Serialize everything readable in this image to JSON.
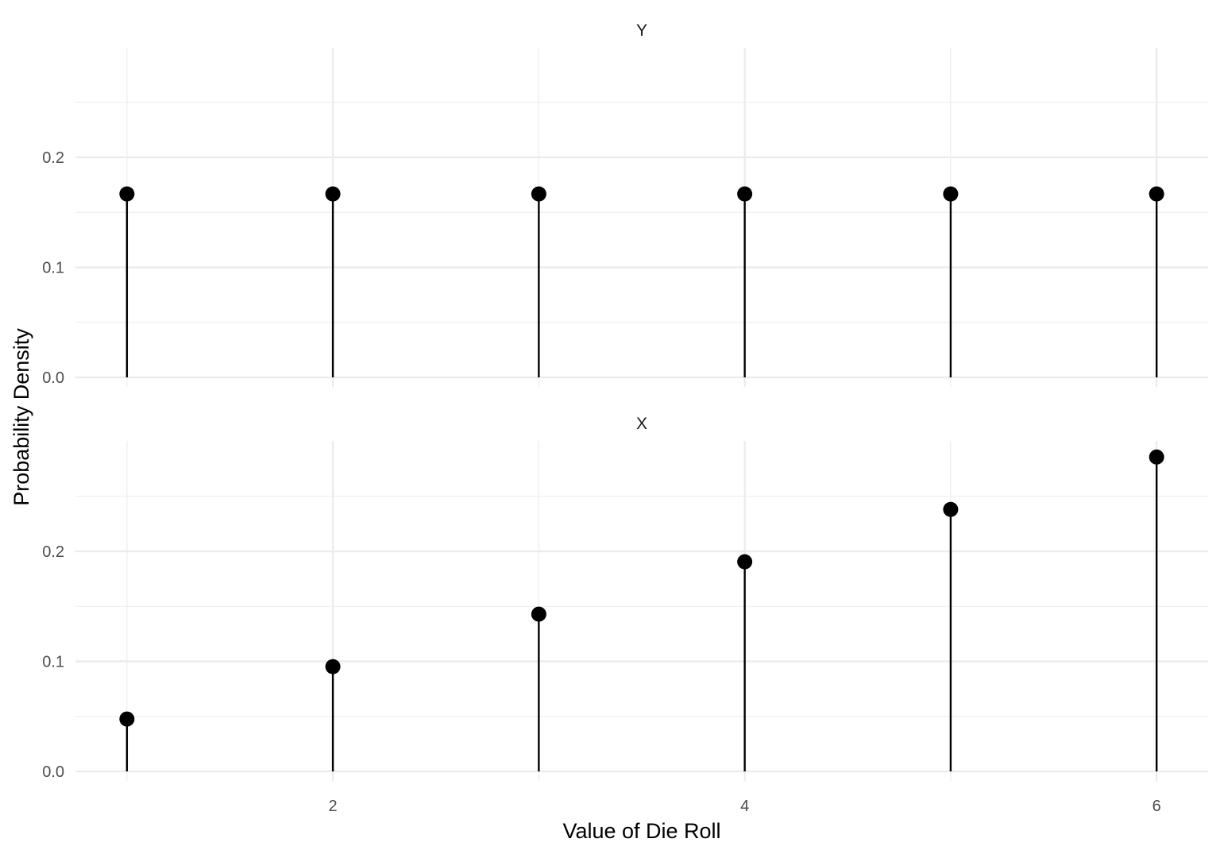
{
  "chart_data": {
    "type": "scatter",
    "style": "lollipop",
    "facets": [
      {
        "label": "Y",
        "x": [
          1,
          2,
          3,
          4,
          5,
          6
        ],
        "y": [
          0.1667,
          0.1667,
          0.1667,
          0.1667,
          0.1667,
          0.1667
        ]
      },
      {
        "label": "X",
        "x": [
          1,
          2,
          3,
          4,
          5,
          6
        ],
        "y": [
          0.0476,
          0.0952,
          0.1429,
          0.1905,
          0.2381,
          0.2857
        ]
      }
    ],
    "xlabel": "Value of Die Roll",
    "ylabel": "Probability Density",
    "x_ticks": [
      2,
      4,
      6
    ],
    "y_ticks": [
      0.0,
      0.1,
      0.2
    ],
    "y_tick_labels": [
      "0.0",
      "0.1",
      "0.2"
    ],
    "xlim": [
      0.75,
      6.25
    ],
    "ylim": [
      0,
      0.3
    ],
    "grid": true,
    "legend": "none",
    "point_color": "#000000",
    "grid_color": "#ebebeb"
  }
}
